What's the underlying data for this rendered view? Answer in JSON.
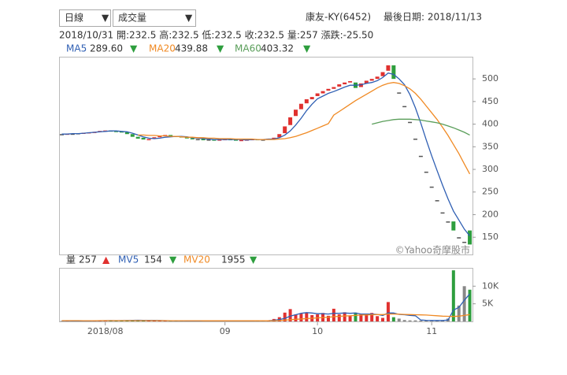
{
  "header": {
    "interval": "日線",
    "indicator": "成交量",
    "stock": "康友-KY(6452)",
    "last_date": "最後日期: 2018/11/13",
    "quote": "2018/10/31 開:232.5 高:232.5 低:232.5 收:232.5 量:257 漲跌:-25.50"
  },
  "chart_data": [
    {
      "type": "candlestick",
      "watermark": "©Yahoo奇摩股市",
      "open": [
        378,
        378,
        379,
        380,
        380,
        381,
        382,
        383,
        385,
        386,
        385,
        384,
        382,
        378,
        372,
        370,
        366,
        368,
        371,
        375,
        376,
        374,
        373,
        371,
        369,
        367,
        367,
        366,
        366,
        365,
        366,
        367,
        366,
        364,
        365,
        366,
        367,
        366,
        367,
        368,
        371,
        380,
        398,
        418,
        433,
        446,
        455,
        462,
        468,
        474,
        478,
        483,
        488,
        492,
        492,
        482,
        490,
        496,
        500,
        506,
        518,
        530,
        470,
        440,
        405,
        368,
        330,
        295,
        262,
        232,
        205,
        185,
        185,
        150,
        140,
        165
      ],
      "close": [
        378,
        379,
        379,
        380,
        381,
        382,
        383,
        385,
        386,
        385,
        384,
        382,
        378,
        372,
        368,
        366,
        367,
        371,
        374,
        376,
        375,
        373,
        372,
        370,
        368,
        367,
        366,
        366,
        365,
        366,
        367,
        366,
        364,
        365,
        366,
        367,
        366,
        366,
        368,
        370,
        378,
        395,
        415,
        432,
        445,
        455,
        460,
        468,
        473,
        478,
        482,
        488,
        492,
        495,
        480,
        490,
        496,
        500,
        505,
        515,
        530,
        500,
        470,
        440,
        405,
        368,
        330,
        295,
        262,
        232,
        205,
        185,
        165,
        150,
        140,
        134
      ],
      "series": [
        {
          "name": "MA5",
          "last": "289.60",
          "trend": "▼",
          "color": "#2f5fb3",
          "values": [
            378,
            378,
            379,
            379,
            380,
            381,
            382,
            383,
            384,
            385,
            385,
            384,
            383,
            380,
            376,
            372,
            369,
            368,
            369,
            371,
            372,
            373,
            373,
            372,
            370,
            369,
            368,
            367,
            366,
            366,
            366,
            366,
            366,
            366,
            365,
            366,
            366,
            366,
            367,
            367,
            370,
            376,
            385,
            398,
            413,
            430,
            444,
            456,
            462,
            468,
            472,
            477,
            482,
            486,
            486,
            487,
            490,
            492,
            496,
            503,
            513,
            510,
            500,
            487,
            465,
            436,
            402,
            365,
            330,
            297,
            265,
            235,
            208,
            188,
            168,
            153
          ]
        },
        {
          "name": "MA20",
          "last": "439.88",
          "trend": "▼",
          "color": "#f08a24",
          "values": [
            null,
            null,
            null,
            null,
            null,
            null,
            null,
            null,
            null,
            null,
            null,
            null,
            null,
            null,
            376,
            376,
            375,
            375,
            374,
            374,
            373,
            373,
            372,
            371,
            371,
            370,
            370,
            369,
            369,
            368,
            368,
            368,
            367,
            367,
            367,
            367,
            366,
            366,
            366,
            366,
            367,
            368,
            370,
            373,
            377,
            381,
            386,
            391,
            396,
            401,
            420,
            428,
            436,
            444,
            452,
            459,
            466,
            473,
            480,
            486,
            490,
            492,
            490,
            485,
            478,
            468,
            455,
            440,
            425,
            410,
            393,
            375,
            355,
            335,
            312,
            290
          ]
        },
        {
          "name": "MA60",
          "last": "403.32",
          "trend": "▼",
          "color": "#5a9e5a",
          "values": [
            null,
            null,
            null,
            null,
            null,
            null,
            null,
            null,
            null,
            null,
            null,
            null,
            null,
            null,
            null,
            null,
            null,
            null,
            null,
            null,
            null,
            null,
            null,
            null,
            null,
            null,
            null,
            null,
            null,
            null,
            null,
            null,
            null,
            null,
            null,
            null,
            null,
            null,
            null,
            null,
            null,
            null,
            null,
            null,
            null,
            null,
            null,
            null,
            null,
            null,
            null,
            null,
            null,
            null,
            null,
            null,
            null,
            400,
            403,
            406,
            408,
            410,
            411,
            411,
            411,
            410,
            409,
            407,
            405,
            403,
            400,
            396,
            392,
            387,
            382,
            376
          ]
        }
      ],
      "ylim": [
        112,
        549
      ],
      "yticks": [
        150,
        200,
        250,
        300,
        350,
        400,
        450,
        500
      ]
    },
    {
      "type": "bar",
      "name": "量",
      "last": "257",
      "trend": "▲",
      "categories": [
        null,
        null,
        null,
        null,
        null,
        null,
        null,
        null,
        "2018/08",
        null,
        null,
        null,
        null,
        null,
        null,
        null,
        null,
        null,
        null,
        null,
        null,
        null,
        null,
        null,
        null,
        null,
        null,
        null,
        null,
        null,
        "09",
        null,
        null,
        null,
        null,
        null,
        null,
        null,
        null,
        null,
        null,
        null,
        null,
        null,
        null,
        null,
        null,
        "10",
        null,
        null,
        null,
        null,
        null,
        null,
        null,
        null,
        null,
        null,
        null,
        null,
        null,
        null,
        null,
        null,
        null,
        null,
        null,
        null,
        "11",
        null,
        null,
        null,
        null,
        null,
        null,
        null
      ],
      "values": [
        150,
        120,
        100,
        200,
        180,
        150,
        200,
        250,
        300,
        200,
        180,
        260,
        350,
        400,
        300,
        250,
        280,
        200,
        220,
        180,
        150,
        120,
        200,
        180,
        150,
        100,
        120,
        150,
        130,
        160,
        140,
        120,
        110,
        180,
        200,
        150,
        180,
        250,
        300,
        700,
        1200,
        2500,
        3500,
        2000,
        2200,
        2500,
        1800,
        2000,
        2400,
        1600,
        3600,
        2000,
        2600,
        1500,
        2500,
        2000,
        1800,
        2400,
        1500,
        1000,
        5500,
        1200,
        800,
        400,
        300,
        300,
        250,
        300,
        200,
        250,
        300,
        800,
        14500,
        4500,
        10000,
        9000
      ],
      "series": [
        {
          "name": "MV5",
          "last": "154",
          "trend": "▼",
          "color": "#2f5fb3",
          "values": [
            180,
            170,
            160,
            150,
            150,
            160,
            180,
            200,
            220,
            240,
            230,
            240,
            260,
            300,
            330,
            320,
            310,
            290,
            260,
            230,
            200,
            180,
            170,
            165,
            160,
            150,
            140,
            140,
            135,
            140,
            140,
            140,
            135,
            140,
            150,
            160,
            170,
            190,
            220,
            330,
            530,
            880,
            1500,
            1900,
            2300,
            2500,
            2400,
            2200,
            2200,
            2100,
            2300,
            2300,
            2400,
            2300,
            2400,
            2100,
            2100,
            2100,
            2000,
            1700,
            2400,
            2400,
            2000,
            1900,
            1700,
            1600,
            400,
            310,
            270,
            260,
            260,
            370,
            3200,
            4000,
            6000,
            7800
          ]
        },
        {
          "name": "MV20",
          "last": "1955",
          "trend": "▼",
          "color": "#f08a24",
          "values": [
            220,
            220,
            220,
            215,
            210,
            210,
            210,
            215,
            215,
            220,
            220,
            220,
            225,
            230,
            230,
            230,
            230,
            225,
            220,
            215,
            210,
            205,
            200,
            200,
            195,
            190,
            185,
            185,
            180,
            180,
            175,
            175,
            170,
            170,
            170,
            170,
            170,
            175,
            180,
            200,
            250,
            350,
            500,
            600,
            700,
            800,
            900,
            1000,
            1100,
            1200,
            1350,
            1450,
            1550,
            1600,
            1700,
            1800,
            1850,
            1900,
            1950,
            1950,
            2100,
            2100,
            2050,
            2000,
            1950,
            1900,
            1850,
            1800,
            1700,
            1600,
            1500,
            1450,
            1400,
            1500,
            1700,
            1955
          ]
        }
      ],
      "ylim": [
        0,
        15200
      ],
      "yticks": [
        {
          "value": 5000,
          "label": "5K"
        },
        {
          "value": 10000,
          "label": "10K"
        }
      ]
    }
  ]
}
